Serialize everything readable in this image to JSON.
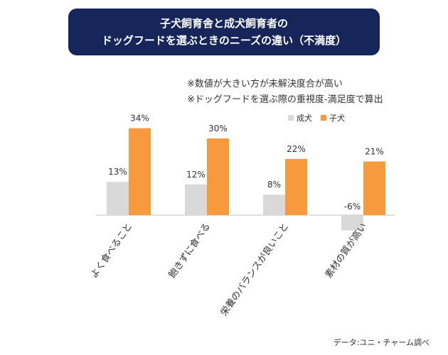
{
  "title": {
    "line1": "子犬飼育舎と成犬飼育者の",
    "line2": "ドッグフードを選ぶときのニーズの違い（不満度）"
  },
  "notes": [
    "※数値が大きい方が未解決度合が高い",
    "※ドッグフードを選ぶ際の重視度-満足度で算出"
  ],
  "source": "データ:ユニ・チャーム調べ",
  "chart_data": {
    "type": "bar",
    "categories": [
      "よく食べること",
      "飽きずに食べる",
      "栄養のバランスが良いこと",
      "素材の質が高い"
    ],
    "series": [
      {
        "name": "成犬",
        "values": [
          13,
          12,
          8,
          -6
        ],
        "labels": [
          "13%",
          "12%",
          "8%",
          "-6%"
        ],
        "color": "#d9d9d9"
      },
      {
        "name": "子犬",
        "values": [
          34,
          30,
          22,
          21
        ],
        "labels": [
          "34%",
          "30%",
          "22%",
          "21%"
        ],
        "color": "#f79a3e"
      }
    ],
    "unit": "%",
    "ylim": [
      -6,
      34
    ],
    "grid": false,
    "legend": "top-right"
  }
}
